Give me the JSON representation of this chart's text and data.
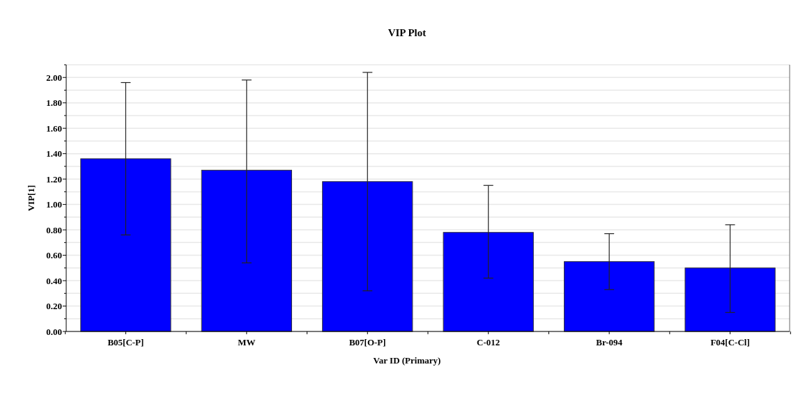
{
  "chart_data": {
    "type": "bar",
    "title": "VIP Plot",
    "xlabel": "Var ID (Primary)",
    "ylabel": "VIP[1]",
    "categories": [
      "B05[C-P]",
      "MW",
      "B07[O-P]",
      "C-012",
      "Br-094",
      "F04[C-Cl]"
    ],
    "values": [
      1.36,
      1.27,
      1.18,
      0.78,
      0.55,
      0.5
    ],
    "errors": [
      [
        0.76,
        1.96
      ],
      [
        0.54,
        1.98
      ],
      [
        0.32,
        2.04
      ],
      [
        0.42,
        1.15
      ],
      [
        0.33,
        0.77
      ],
      [
        0.15,
        0.84
      ]
    ],
    "color": "#0000ff",
    "ylim": [
      0,
      2.1
    ],
    "yticks": [
      "0.00",
      {
        "value": 0.1,
        "label": null
      },
      {
        "value": 0.2,
        "label": "0.20"
      },
      {
        "value": 0.3,
        "label": null
      },
      {
        "value": 0.4,
        "label": "0.40"
      },
      {
        "value": 0.5,
        "label": null
      },
      {
        "value": 0.6,
        "label": "0.60"
      },
      {
        "value": 0.7,
        "label": null
      },
      {
        "value": 0.8,
        "label": "0.80"
      },
      {
        "value": 0.9,
        "label": null
      },
      {
        "value": 1,
        "label": "1.00"
      },
      {
        "value": 1.1,
        "label": null
      },
      {
        "value": 1.2,
        "label": "1.20"
      },
      {
        "value": 1.3,
        "label": null
      },
      {
        "value": 1.4,
        "label": "1.40"
      },
      {
        "value": 1.5,
        "label": null
      },
      {
        "value": 1.6,
        "label": "1.60"
      },
      {
        "value": 1.7,
        "label": null
      },
      {
        "value": 1.8,
        "label": "1.80"
      },
      {
        "value": 1.9,
        "label": null
      },
      {
        "value": 2,
        "label": "2.00"
      },
      {
        "value": 2.1,
        "label": null
      }
    ],
    "grid": "y"
  }
}
